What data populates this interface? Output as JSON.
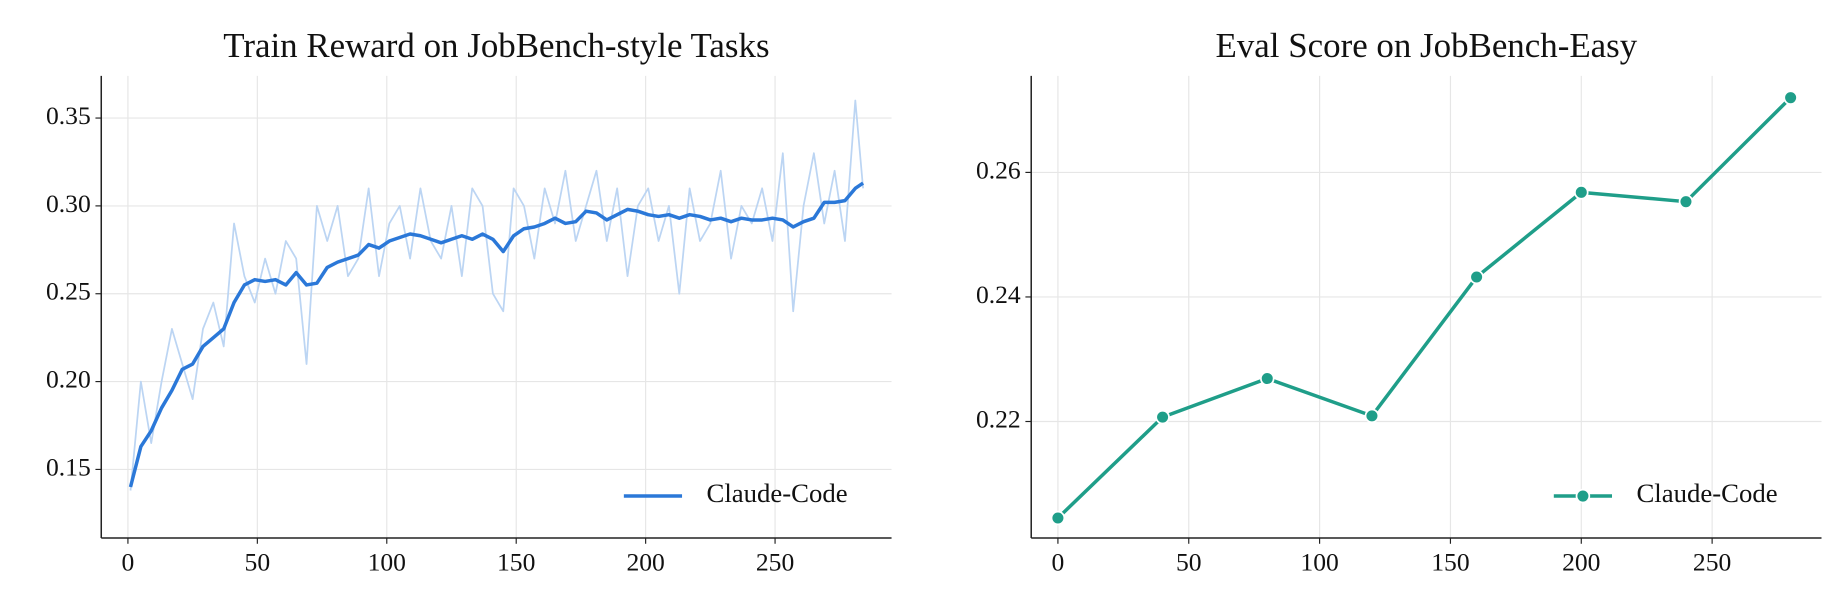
{
  "chart_data": [
    {
      "type": "line",
      "title": "Train Reward on JobBench-style Tasks",
      "x": [
        1,
        5,
        9,
        13,
        17,
        21,
        25,
        29,
        33,
        37,
        41,
        45,
        49,
        53,
        57,
        61,
        65,
        69,
        73,
        77,
        81,
        85,
        89,
        93,
        97,
        101,
        105,
        109,
        113,
        117,
        121,
        125,
        129,
        133,
        137,
        141,
        145,
        149,
        153,
        157,
        161,
        165,
        169,
        173,
        177,
        181,
        185,
        189,
        193,
        197,
        201,
        205,
        209,
        213,
        217,
        221,
        225,
        229,
        233,
        237,
        241,
        245,
        249,
        253,
        257,
        261,
        265,
        269,
        273,
        277,
        281,
        284
      ],
      "series": [
        {
          "color": "#bcd5f3",
          "values": [
            0.138,
            0.2,
            0.165,
            0.2,
            0.23,
            0.21,
            0.19,
            0.23,
            0.245,
            0.22,
            0.29,
            0.26,
            0.245,
            0.27,
            0.25,
            0.28,
            0.27,
            0.21,
            0.3,
            0.28,
            0.3,
            0.26,
            0.27,
            0.31,
            0.26,
            0.29,
            0.3,
            0.27,
            0.31,
            0.28,
            0.27,
            0.3,
            0.26,
            0.31,
            0.3,
            0.25,
            0.24,
            0.31,
            0.3,
            0.27,
            0.31,
            0.29,
            0.32,
            0.28,
            0.3,
            0.32,
            0.28,
            0.31,
            0.26,
            0.3,
            0.31,
            0.28,
            0.3,
            0.25,
            0.31,
            0.28,
            0.29,
            0.32,
            0.27,
            0.3,
            0.29,
            0.31,
            0.28,
            0.33,
            0.24,
            0.3,
            0.33,
            0.29,
            0.32,
            0.28,
            0.36,
            0.31
          ]
        },
        {
          "name": "Claude-Code",
          "color": "#2b78d8",
          "values": [
            0.14,
            0.163,
            0.172,
            0.185,
            0.195,
            0.207,
            0.21,
            0.22,
            0.225,
            0.23,
            0.245,
            0.255,
            0.258,
            0.257,
            0.258,
            0.255,
            0.262,
            0.255,
            0.256,
            0.265,
            0.268,
            0.27,
            0.272,
            0.278,
            0.276,
            0.28,
            0.282,
            0.284,
            0.283,
            0.281,
            0.279,
            0.281,
            0.283,
            0.281,
            0.284,
            0.281,
            0.274,
            0.283,
            0.287,
            0.288,
            0.29,
            0.293,
            0.29,
            0.291,
            0.297,
            0.296,
            0.292,
            0.295,
            0.298,
            0.297,
            0.295,
            0.294,
            0.295,
            0.293,
            0.295,
            0.294,
            0.292,
            0.293,
            0.291,
            0.293,
            0.292,
            0.292,
            0.293,
            0.292,
            0.288,
            0.291,
            0.293,
            0.302,
            0.302,
            0.303,
            0.31,
            0.313
          ]
        }
      ],
      "xlim": [
        -10.3,
        295
      ],
      "ylim": [
        0.111,
        0.374
      ],
      "xticks": [
        0,
        50,
        100,
        150,
        200,
        250
      ],
      "yticks": [
        0.15,
        {
          "value": 0.2,
          "label": "0.20"
        },
        0.25,
        {
          "value": 0.3,
          "label": "0.30"
        },
        0.35
      ],
      "grid": true,
      "legend": "lower right"
    },
    {
      "type": "line",
      "title": "Eval Score on JobBench-Easy",
      "x": [
        0,
        40,
        80,
        120,
        160,
        200,
        240,
        280
      ],
      "series": [
        {
          "name": "Claude-Code",
          "color": "#1f9e89",
          "marker": "o",
          "values": [
            0.2045,
            0.2207,
            0.2269,
            0.2209,
            0.2432,
            0.2568,
            0.2553,
            0.272
          ]
        }
      ],
      "xlim": [
        -10.2,
        291.8
      ],
      "ylim": [
        0.2013,
        0.2755
      ],
      "xticks": [
        0,
        50,
        100,
        150,
        200,
        250
      ],
      "yticks": [
        0.22,
        0.24,
        0.26
      ],
      "grid": true,
      "legend": "lower right"
    }
  ]
}
